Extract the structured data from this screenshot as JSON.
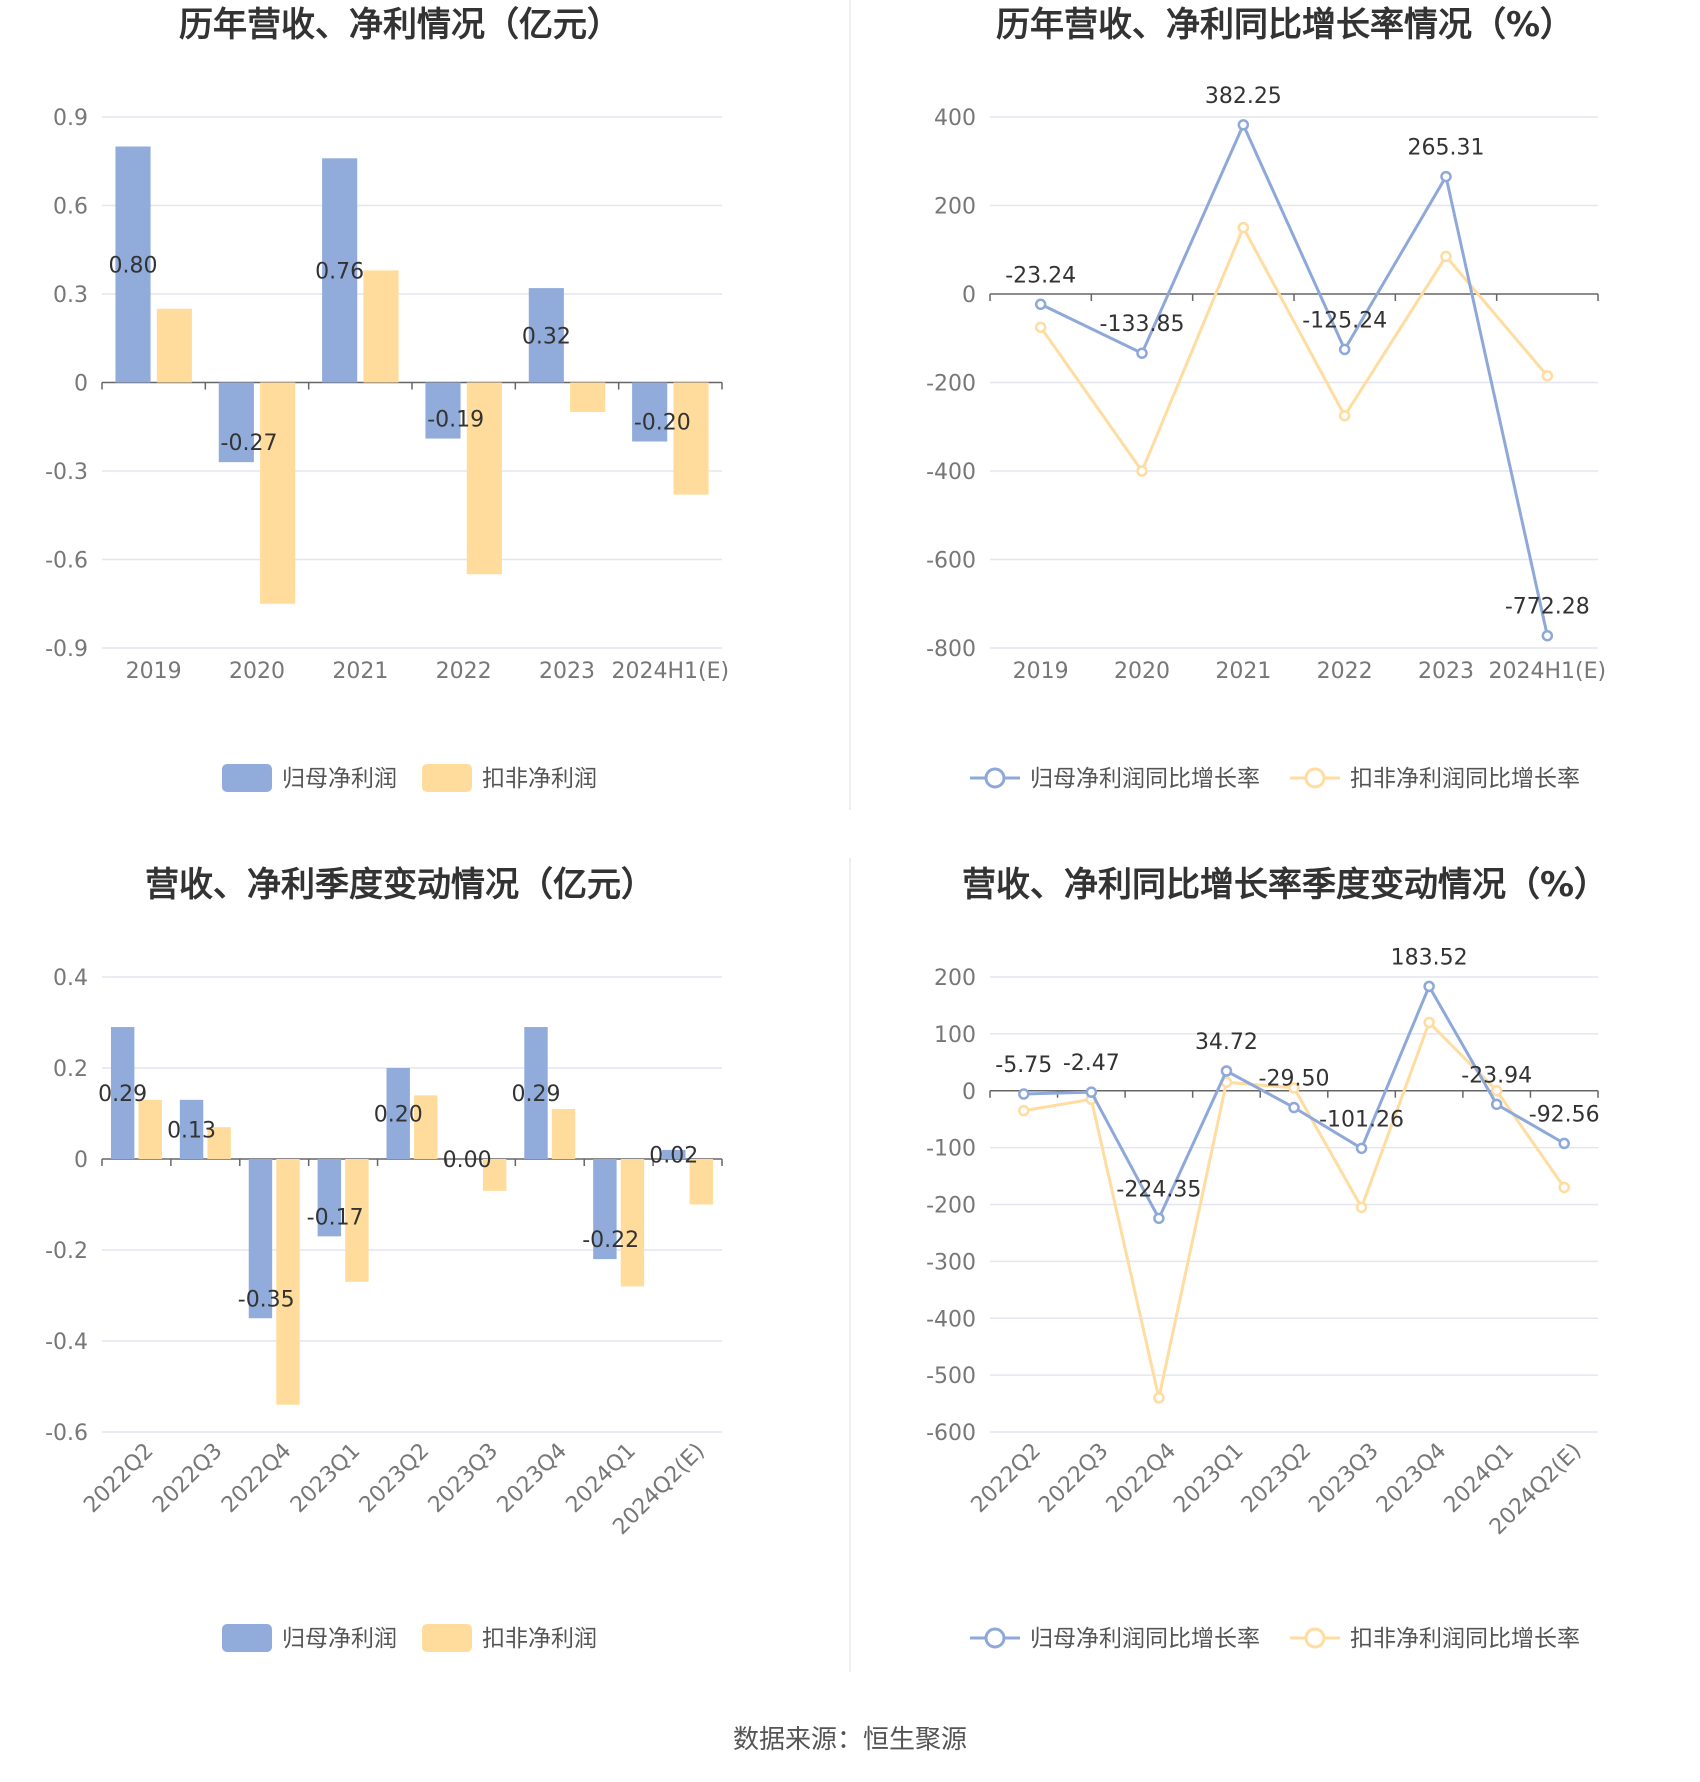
{
  "colors": {
    "blue": "#91acdb",
    "orange": "#ffdc9b",
    "blue_line": "#8ea9d9",
    "orange_line": "#ffdca0"
  },
  "footer": {
    "source": "数据来源：恒生聚源"
  },
  "chart_data": [
    {
      "type": "bar",
      "title": "历年营收、净利情况（亿元）",
      "categories": [
        "2019",
        "2020",
        "2021",
        "2022",
        "2023",
        "2024H1(E)"
      ],
      "ylim": [
        -0.9,
        0.9
      ],
      "yticks": [
        "0.9",
        "0.6",
        "0.3",
        "0",
        "-0.3",
        "-0.6",
        "-0.9"
      ],
      "grid": true,
      "legend_position": "bottom",
      "series": [
        {
          "name": "归母净利润",
          "values": [
            0.8,
            -0.27,
            0.76,
            -0.19,
            0.32,
            -0.2
          ],
          "labels": [
            "0.80",
            "-0.27",
            "0.76",
            "-0.19",
            "0.32",
            "-0.20"
          ]
        },
        {
          "name": "扣非净利润",
          "values": [
            0.25,
            -0.75,
            0.38,
            -0.65,
            -0.1,
            -0.38
          ]
        }
      ]
    },
    {
      "type": "line",
      "title": "历年营收、净利同比增长率情况（%）",
      "categories": [
        "2019",
        "2020",
        "2021",
        "2022",
        "2023",
        "2024H1(E)"
      ],
      "ylim": [
        -800,
        400
      ],
      "yticks": [
        "400",
        "200",
        "0",
        "-200",
        "-400",
        "-600",
        "-800"
      ],
      "grid": true,
      "legend_position": "bottom",
      "series": [
        {
          "name": "归母净利润同比增长率",
          "values": [
            -23.24,
            -133.85,
            382.25,
            -125.24,
            265.31,
            -772.28
          ],
          "labels": [
            "-23.24",
            "-133.85",
            "382.25",
            "-125.24",
            "265.31",
            "-772.28"
          ]
        },
        {
          "name": "扣非净利润同比增长率",
          "values": [
            -75,
            -400,
            150,
            -275,
            85,
            -185
          ]
        }
      ]
    },
    {
      "type": "bar",
      "title": "营收、净利季度变动情况（亿元）",
      "categories": [
        "2022Q2",
        "2022Q3",
        "2022Q4",
        "2023Q1",
        "2023Q2",
        "2023Q3",
        "2023Q4",
        "2024Q1",
        "2024Q2(E)"
      ],
      "ylim": [
        -0.6,
        0.4
      ],
      "yticks": [
        "0.4",
        "0.2",
        "0",
        "-0.2",
        "-0.4",
        "-0.6"
      ],
      "grid": true,
      "legend_position": "bottom",
      "series": [
        {
          "name": "归母净利润",
          "values": [
            0.29,
            0.13,
            -0.35,
            -0.17,
            0.2,
            0.0,
            0.29,
            -0.22,
            0.02
          ],
          "labels": [
            "0.29",
            "0.13",
            "-0.35",
            "-0.17",
            "0.20",
            "0.00",
            "0.29",
            "-0.22",
            "0.02"
          ]
        },
        {
          "name": "扣非净利润",
          "values": [
            0.13,
            0.07,
            -0.54,
            -0.27,
            0.14,
            -0.07,
            0.11,
            -0.28,
            -0.1
          ]
        }
      ]
    },
    {
      "type": "line",
      "title": "营收、净利同比增长率季度变动情况（%）",
      "categories": [
        "2022Q2",
        "2022Q3",
        "2022Q4",
        "2023Q1",
        "2023Q2",
        "2023Q3",
        "2023Q4",
        "2024Q1",
        "2024Q2(E)"
      ],
      "ylim": [
        -600,
        200
      ],
      "yticks": [
        "200",
        "100",
        "0",
        "-100",
        "-200",
        "-300",
        "-400",
        "-500",
        "-600"
      ],
      "grid": true,
      "legend_position": "bottom",
      "series": [
        {
          "name": "归母净利润同比增长率",
          "values": [
            -5.75,
            -2.47,
            -224.35,
            34.72,
            -29.5,
            -101.26,
            183.52,
            -23.94,
            -92.56
          ],
          "labels": [
            "-5.75",
            "-2.47",
            "-224.35",
            "34.72",
            "-29.50",
            "-101.26",
            "183.52",
            "-23.94",
            "-92.56"
          ]
        },
        {
          "name": "扣非净利润同比增长率",
          "values": [
            -35,
            -15,
            -540,
            15,
            5,
            -205,
            120,
            0,
            -170
          ]
        }
      ]
    }
  ]
}
